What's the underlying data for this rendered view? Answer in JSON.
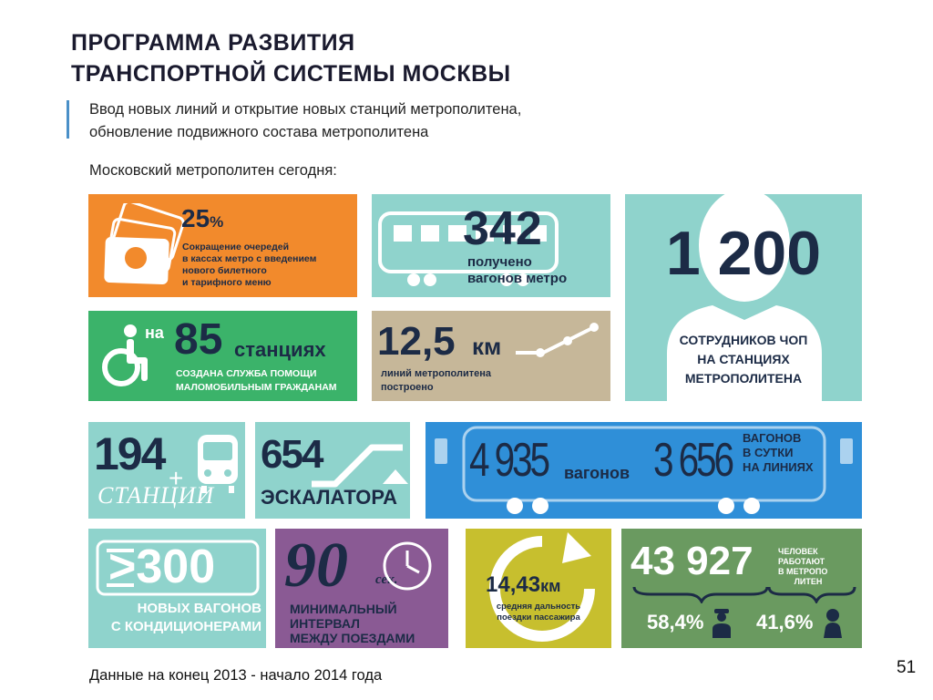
{
  "header": {
    "title_line1": "ПРОГРАММА РАЗВИТИЯ",
    "title_line2": "ТРАНСПОРТНОЙ СИСТЕМЫ МОСКВЫ",
    "subtitle_line1": "Ввод новых линий и открытие новых станций метрополитена,",
    "subtitle_line2": "обновление подвижного состава метрополитена",
    "lead": "Московский метрополитен сегодня:"
  },
  "tiles": {
    "queue": {
      "value": "25",
      "unit": "%",
      "line1": "Сокращение очередей",
      "line2": "в кассах метро с введением",
      "line3": "нового билетного",
      "line4": "и тарифного меню",
      "color": "#f28a2c",
      "icon": "tickets-icon"
    },
    "cars": {
      "value": "342",
      "line1": "получено",
      "line2": "вагонов метро",
      "color": "#8fd3cc",
      "icon": "metro-car-icon"
    },
    "security": {
      "value": "1 200",
      "line1": "СОТРУДНИКОВ ЧОП",
      "line2": "НА СТАНЦИЯХ",
      "line3": "МЕТРОПОЛИТЕНА",
      "color": "#8fd3cc",
      "icon": "guard-silhouette-icon"
    },
    "accessibility": {
      "prefix": "на",
      "value": "85",
      "unit": "станциях",
      "line1": "СОЗДАНА СЛУЖБА ПОМОЩИ",
      "line2": "МАЛОМОБИЛЬНЫМ ГРАЖДАНАМ",
      "color": "#3bb36a",
      "icon": "wheelchair-icon"
    },
    "lines_km": {
      "value": "12,5",
      "unit": "км",
      "line1": "линий метрополитена",
      "line2": "построено",
      "color": "#c6b799",
      "icon": "route-line-icon"
    },
    "stations": {
      "value": "194",
      "label": "СТАНЦИИ",
      "color": "#8fd3cc",
      "icon": "train-front-icon"
    },
    "escalators": {
      "value": "654",
      "label": "ЭСКАЛАТОРА",
      "color": "#8fd3cc",
      "icon": "escalator-icon"
    },
    "train_stats": {
      "value1": "4 935",
      "label1": "вагонов",
      "value2": "3 656",
      "label2_line1": "ВАГОНОВ",
      "label2_line2": "В СУТКИ",
      "label2_line3": "НА ЛИНИЯХ",
      "color": "#2f8fd8",
      "icon": "train-car-icon"
    },
    "air_conditioned": {
      "value": ">300",
      "line1": "НОВЫХ ВАГОНОВ",
      "line2": "С КОНДИЦИОНЕРАМИ",
      "color": "#8fd3cc",
      "icon": "speed-arrow-icon"
    },
    "interval": {
      "value": "90",
      "unit": "сек.",
      "line1": "МИНИМАЛЬНЫЙ ИНТЕРВАЛ",
      "line2": "МЕЖДУ ПОЕЗДАМИ",
      "color": "#8a5a94",
      "icon": "clock-icon"
    },
    "distance": {
      "value": "14,43",
      "unit": "км",
      "line1": "средняя дальность",
      "line2": "поездки пассажира",
      "color": "#c7bf2e",
      "icon": "circular-arrow-icon"
    },
    "staff": {
      "value": "43 927",
      "label_line1": "ЧЕЛОВЕК",
      "label_line2": "РАБОТАЮТ",
      "label_line3": "В МЕТРОПО",
      "label_line4": "ЛИТЕН",
      "male_share": "58,4%",
      "female_share": "41,6%",
      "color": "#6a9a60",
      "icon": "worker-icon"
    }
  },
  "footer": {
    "note": "Данные на конец 2013 - начало 2014 года",
    "page": "51"
  }
}
